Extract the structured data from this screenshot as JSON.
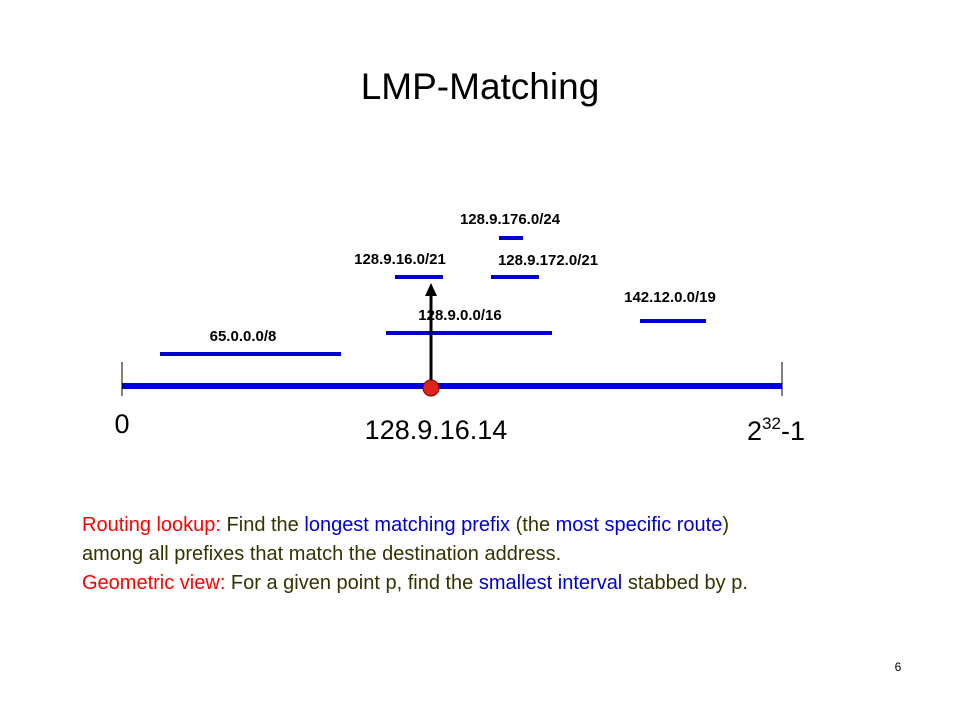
{
  "title": "LMP-Matching",
  "colors": {
    "axis": "#0000dd",
    "interval": "#0000cc",
    "query_point": "#e0231c",
    "stab_arrow": "#000000",
    "red_text": "#ff0000",
    "blue_text": "#0000cc",
    "olive_text": "#333300"
  },
  "axis": {
    "start_label": "0",
    "end_label_base": "2",
    "end_label_exponent": "32",
    "end_label_suffix": "-1"
  },
  "query": {
    "address": "128.9.16.14"
  },
  "prefixes": [
    {
      "label": "65.0.0.0/8"
    },
    {
      "label": "128.9.0.0/16"
    },
    {
      "label": "128.9.16.0/21"
    },
    {
      "label": "128.9.172.0/21"
    },
    {
      "label": "128.9.176.0/24"
    },
    {
      "label": "142.12.0.0/19"
    }
  ],
  "caption": {
    "line1": {
      "p1": "Routing lookup:",
      "p2": " Find the ",
      "p3": "longest matching prefix",
      "p4": " (the ",
      "p5": "most specific route",
      "p6": ")"
    },
    "line2": "among all prefixes that match the destination address.",
    "line3": {
      "p1": "Geometric view:",
      "p2": " For a given point p, find the ",
      "p3": "smallest interval",
      "p4": " stabbed by p."
    }
  },
  "slide_number": "6"
}
